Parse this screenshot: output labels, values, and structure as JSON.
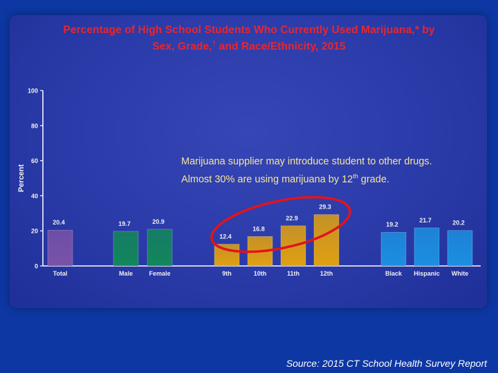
{
  "title_line1": "Percentage of High School Students Who Currently Used Marijuana,* by",
  "title_line2_a": "Sex, Grade,",
  "title_line2_dagger": "†",
  "title_line2_b": " and Race/Ethnicity, 2015",
  "note_line1": "Marijuana supplier may introduce student to other drugs.",
  "note_line2_a": "Almost 30% are using marijuana by 12",
  "note_line2_sup": "th",
  "note_line2_b": " grade.",
  "source": "Source: 2015 CT School Health Survey Report",
  "colors": {
    "title": "#e8262d",
    "background": "#0d37a3",
    "panel": "#2f3fae",
    "total": "#7a52a8",
    "sex": "#12875b",
    "grade": "#e0a012",
    "race": "#1c8fe0",
    "highlight_circle": "#e3131b",
    "note": "#f6e49a"
  },
  "chart_data": {
    "type": "bar",
    "ylabel": "Percent",
    "ylim": [
      0,
      100
    ],
    "yticks": [
      0,
      20,
      40,
      60,
      80,
      100
    ],
    "grid": false,
    "categories": [
      "Total",
      "Male",
      "Female",
      "9th",
      "10th",
      "11th",
      "12th",
      "Black",
      "Hispanic",
      "White"
    ],
    "groups": [
      "total",
      "sex",
      "sex",
      "grade",
      "grade",
      "grade",
      "grade",
      "race",
      "race",
      "race"
    ],
    "values": [
      20.4,
      19.7,
      20.9,
      12.4,
      16.8,
      22.9,
      29.3,
      19.2,
      21.7,
      20.2
    ],
    "value_labels": [
      "20.4",
      "19.7",
      "20.9",
      "12.4",
      "16.8",
      "22.9",
      "29.3",
      "19.2",
      "21.7",
      "20.2"
    ],
    "annotation": "red ellipse around grade bars 9th–12th"
  }
}
